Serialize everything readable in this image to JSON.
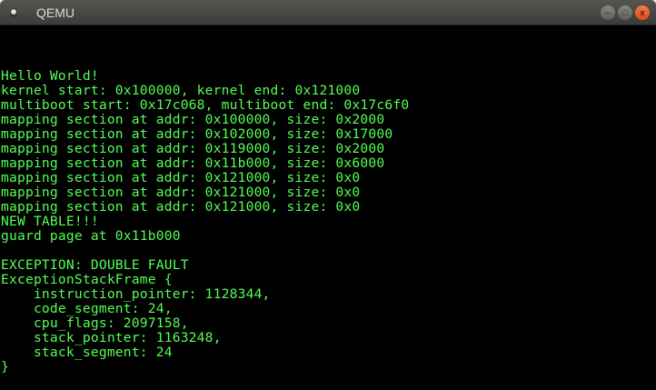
{
  "window": {
    "title": "QEMU",
    "minimize": "–",
    "maximize": "□",
    "close": "x"
  },
  "console": {
    "text_color": "#55ff55",
    "lines": [
      "",
      "",
      "",
      "Hello World!",
      "kernel start: 0x100000, kernel end: 0x121000",
      "multiboot start: 0x17c068, multiboot end: 0x17c6f0",
      "mapping section at addr: 0x100000, size: 0x2000",
      "mapping section at addr: 0x102000, size: 0x17000",
      "mapping section at addr: 0x119000, size: 0x2000",
      "mapping section at addr: 0x11b000, size: 0x6000",
      "mapping section at addr: 0x121000, size: 0x0",
      "mapping section at addr: 0x121000, size: 0x0",
      "mapping section at addr: 0x121000, size: 0x0",
      "NEW TABLE!!!",
      "guard page at 0x11b000",
      "",
      "EXCEPTION: DOUBLE FAULT",
      "ExceptionStackFrame {",
      "    instruction_pointer: 1128344,",
      "    code_segment: 24,",
      "    cpu_flags: 2097158,",
      "    stack_pointer: 1163248,",
      "    stack_segment: 24",
      "}"
    ]
  }
}
